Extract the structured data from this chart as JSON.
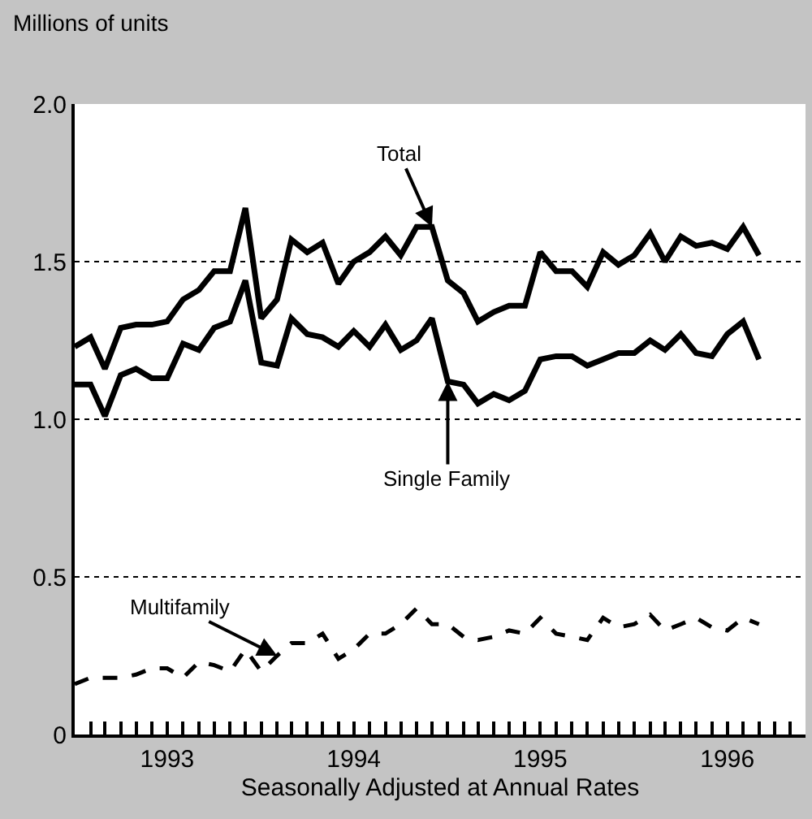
{
  "chart_data": {
    "type": "line",
    "ylabel": "Millions of units",
    "xlabel": "Seasonally Adjusted at Annual Rates",
    "x": [
      "1993-01",
      "1993-02",
      "1993-03",
      "1993-04",
      "1993-05",
      "1993-06",
      "1993-07",
      "1993-08",
      "1993-09",
      "1993-10",
      "1993-11",
      "1993-12",
      "1994-01",
      "1994-02",
      "1994-03",
      "1994-04",
      "1994-05",
      "1994-06",
      "1994-07",
      "1994-08",
      "1994-09",
      "1994-10",
      "1994-11",
      "1994-12",
      "1995-01",
      "1995-02",
      "1995-03",
      "1995-04",
      "1995-05",
      "1995-06",
      "1995-07",
      "1995-08",
      "1995-09",
      "1995-10",
      "1995-11",
      "1995-12",
      "1996-01",
      "1996-02",
      "1996-03",
      "1996-04",
      "1996-05",
      "1996-06",
      "1996-07",
      "1996-08",
      "1996-09"
    ],
    "series": [
      {
        "name": "Total",
        "color": "#000000",
        "line_style": "solid",
        "values": [
          1.23,
          1.26,
          1.16,
          1.29,
          1.3,
          1.3,
          1.31,
          1.38,
          1.41,
          1.47,
          1.47,
          1.67,
          1.32,
          1.38,
          1.57,
          1.53,
          1.56,
          1.43,
          1.5,
          1.53,
          1.58,
          1.52,
          1.61,
          1.61,
          1.44,
          1.4,
          1.31,
          1.34,
          1.36,
          1.36,
          1.53,
          1.47,
          1.47,
          1.42,
          1.53,
          1.49,
          1.52,
          1.59,
          1.5,
          1.58,
          1.55,
          1.56,
          1.54,
          1.61,
          1.52
        ]
      },
      {
        "name": "Single Family",
        "color": "#000000",
        "line_style": "solid",
        "values": [
          1.11,
          1.11,
          1.01,
          1.14,
          1.16,
          1.13,
          1.13,
          1.24,
          1.22,
          1.29,
          1.31,
          1.44,
          1.18,
          1.17,
          1.32,
          1.27,
          1.26,
          1.23,
          1.28,
          1.23,
          1.3,
          1.22,
          1.25,
          1.32,
          1.12,
          1.11,
          1.05,
          1.08,
          1.06,
          1.09,
          1.19,
          1.2,
          1.2,
          1.17,
          1.19,
          1.21,
          1.21,
          1.25,
          1.22,
          1.27,
          1.21,
          1.2,
          1.27,
          1.31,
          1.19
        ]
      },
      {
        "name": "Multifamily",
        "color": "#000000",
        "line_style": "dashed",
        "values": [
          0.16,
          0.18,
          0.18,
          0.18,
          0.19,
          0.21,
          0.21,
          0.18,
          0.23,
          0.22,
          0.2,
          0.27,
          0.2,
          0.25,
          0.29,
          0.29,
          0.32,
          0.24,
          0.27,
          0.32,
          0.32,
          0.35,
          0.4,
          0.35,
          0.35,
          0.31,
          0.3,
          0.31,
          0.33,
          0.32,
          0.37,
          0.32,
          0.31,
          0.3,
          0.37,
          0.34,
          0.35,
          0.38,
          0.33,
          0.35,
          0.37,
          0.34,
          0.33,
          0.37,
          0.35
        ]
      }
    ],
    "ylim": [
      0,
      2.0
    ],
    "yticks": [
      0,
      0.5,
      {
        "value": 1,
        "label": "1.0"
      },
      1.5,
      {
        "value": 2,
        "label": "2.0"
      }
    ],
    "xlim": [
      "1993-01",
      "1996-12"
    ],
    "xticks": [
      {
        "value": "1993-01",
        "label": null
      },
      {
        "value": "1993-02",
        "label": null
      },
      {
        "value": "1993-03",
        "label": null
      },
      {
        "value": "1993-04",
        "label": null
      },
      {
        "value": "1993-05",
        "label": null
      },
      {
        "value": "1993-06",
        "label": null
      },
      {
        "value": "1993-07",
        "label": "1993"
      },
      {
        "value": "1993-08",
        "label": null
      },
      {
        "value": "1993-09",
        "label": null
      },
      {
        "value": "1993-10",
        "label": null
      },
      {
        "value": "1993-11",
        "label": null
      },
      {
        "value": "1993-12",
        "label": null
      },
      {
        "value": "1994-01",
        "label": null
      },
      {
        "value": "1994-02",
        "label": null
      },
      {
        "value": "1994-03",
        "label": null
      },
      {
        "value": "1994-04",
        "label": null
      },
      {
        "value": "1994-05",
        "label": null
      },
      {
        "value": "1994-06",
        "label": null
      },
      {
        "value": "1994-07",
        "label": "1994"
      },
      {
        "value": "1994-08",
        "label": null
      },
      {
        "value": "1994-09",
        "label": null
      },
      {
        "value": "1994-10",
        "label": null
      },
      {
        "value": "1994-11",
        "label": null
      },
      {
        "value": "1994-12",
        "label": null
      },
      {
        "value": "1995-01",
        "label": null
      },
      {
        "value": "1995-02",
        "label": null
      },
      {
        "value": "1995-03",
        "label": null
      },
      {
        "value": "1995-04",
        "label": null
      },
      {
        "value": "1995-05",
        "label": null
      },
      {
        "value": "1995-06",
        "label": null
      },
      {
        "value": "1995-07",
        "label": "1995"
      },
      {
        "value": "1995-08",
        "label": null
      },
      {
        "value": "1995-09",
        "label": null
      },
      {
        "value": "1995-10",
        "label": null
      },
      {
        "value": "1995-11",
        "label": null
      },
      {
        "value": "1995-12",
        "label": null
      },
      {
        "value": "1996-01",
        "label": null
      },
      {
        "value": "1996-02",
        "label": null
      },
      {
        "value": "1996-03",
        "label": null
      },
      {
        "value": "1996-04",
        "label": null
      },
      {
        "value": "1996-05",
        "label": null
      },
      {
        "value": "1996-06",
        "label": null
      },
      {
        "value": "1996-07",
        "label": "1996"
      },
      {
        "value": "1996-08",
        "label": null
      },
      {
        "value": "1996-09",
        "label": null
      },
      {
        "value": "1996-10",
        "label": null
      },
      {
        "value": "1996-11",
        "label": null
      },
      {
        "value": "1996-12",
        "label": null
      }
    ],
    "grid": "y",
    "legend": false,
    "marker": "none"
  }
}
